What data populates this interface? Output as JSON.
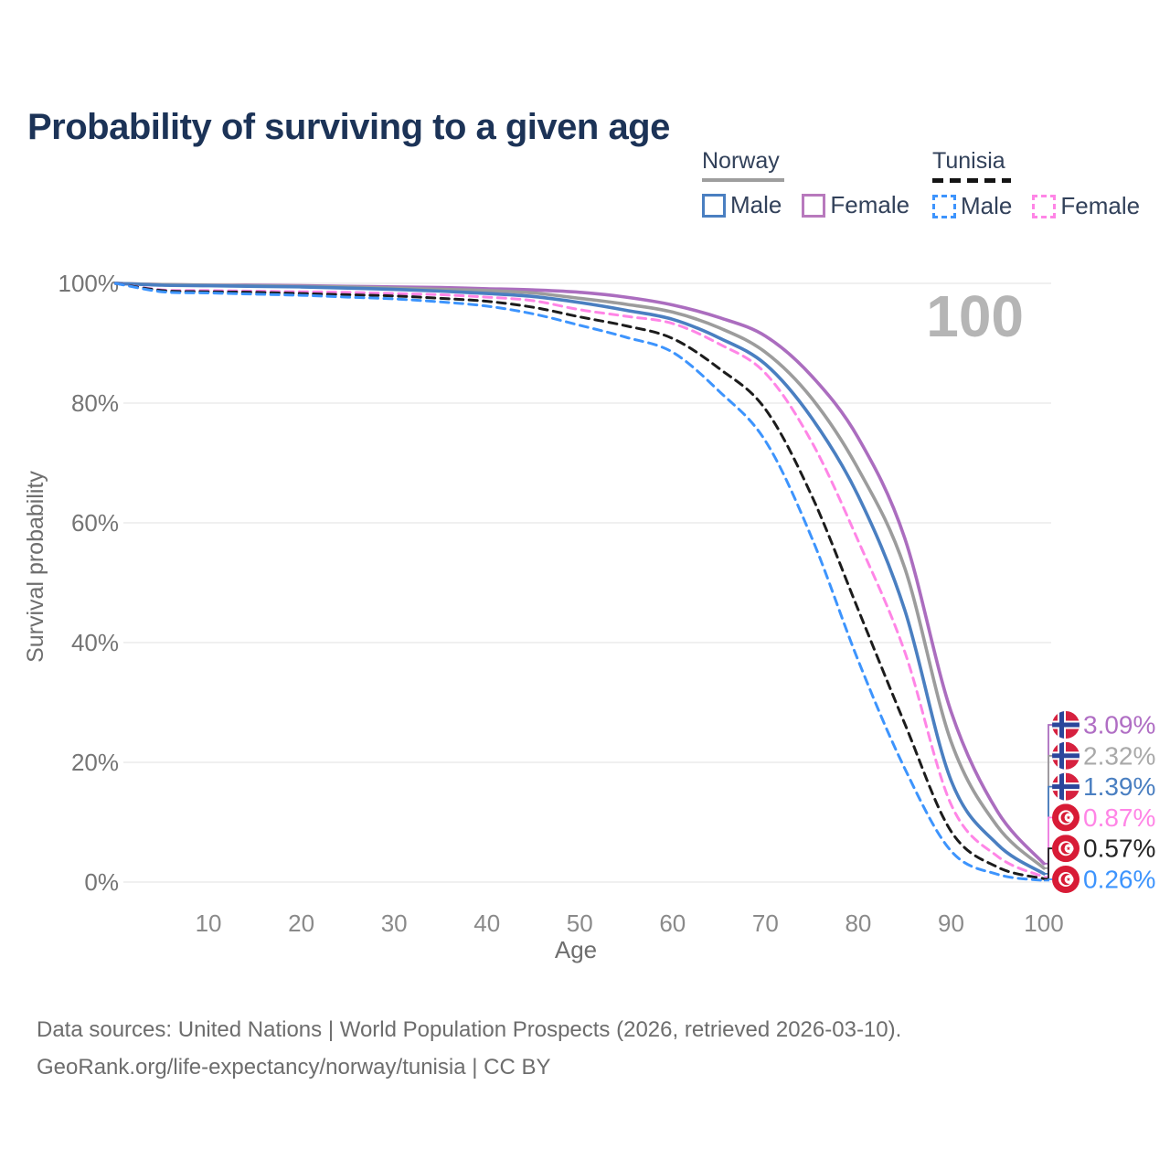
{
  "title": "Probability of surviving to a given age",
  "watermark": "100",
  "legend": {
    "norway": {
      "header": "Norway",
      "male_label": "Male",
      "female_label": "Female"
    },
    "tunisia": {
      "header": "Tunisia",
      "male_label": "Male",
      "female_label": "Female"
    }
  },
  "axes": {
    "x_label": "Age",
    "y_label": "Survival probability",
    "x_ticks": [
      10,
      20,
      30,
      40,
      50,
      60,
      70,
      80,
      90,
      100
    ],
    "y_ticks": [
      "0%",
      "20%",
      "40%",
      "60%",
      "80%",
      "100%"
    ]
  },
  "chart_data": {
    "type": "line",
    "title": "Probability of surviving to a given age",
    "xlabel": "Age",
    "ylabel": "Survival probability",
    "xlim": [
      0,
      100
    ],
    "ylim": [
      0,
      100
    ],
    "grid": "horizontal",
    "legend_position": "top-right",
    "x": [
      0,
      5,
      10,
      15,
      20,
      25,
      30,
      35,
      40,
      45,
      50,
      55,
      60,
      65,
      70,
      75,
      80,
      85,
      90,
      95,
      100
    ],
    "series": [
      {
        "name": "Norway — Female",
        "country": "norway",
        "sex": "female",
        "style": "solid",
        "color": "#ab6dbf",
        "end_label": "3.09%",
        "end_label_color": "#b06ec4",
        "values": [
          100,
          99.8,
          99.7,
          99.7,
          99.6,
          99.5,
          99.4,
          99.3,
          99.1,
          98.9,
          98.5,
          97.7,
          96.4,
          94.3,
          91.2,
          84.5,
          74.2,
          57.5,
          28.5,
          11.8,
          3.09
        ]
      },
      {
        "name": "Norway — Both sexes",
        "country": "norway",
        "sex": "all",
        "style": "solid",
        "color": "#9c9c9c",
        "end_label": "2.32%",
        "end_label_color": "#a9a9a9",
        "values": [
          100,
          99.8,
          99.7,
          99.6,
          99.5,
          99.4,
          99.2,
          99.0,
          98.8,
          98.4,
          97.5,
          96.5,
          95.2,
          92.6,
          88.5,
          80.8,
          69.0,
          52.5,
          23.5,
          9.3,
          2.32
        ]
      },
      {
        "name": "Norway — Male",
        "country": "norway",
        "sex": "male",
        "style": "solid",
        "color": "#4a7fc1",
        "end_label": "1.39%",
        "end_label_color": "#4a7fc1",
        "values": [
          100,
          99.7,
          99.6,
          99.5,
          99.4,
          99.2,
          99.0,
          98.7,
          98.3,
          97.8,
          96.8,
          95.5,
          94.0,
          90.9,
          86.5,
          77.5,
          64.5,
          45.5,
          17.0,
          6.3,
          1.39
        ]
      },
      {
        "name": "Tunisia — Female",
        "country": "tunisia",
        "sex": "female",
        "style": "dashed",
        "color": "#ff85e6",
        "end_label": "0.87%",
        "end_label_color": "#ff85e6",
        "values": [
          100,
          98.9,
          98.8,
          98.7,
          98.6,
          98.5,
          98.3,
          98.1,
          97.7,
          97.1,
          95.6,
          94.5,
          93.3,
          89.9,
          85.0,
          73.5,
          57.0,
          38.5,
          13.0,
          4.3,
          0.87
        ]
      },
      {
        "name": "Tunisia — Both sexes",
        "country": "tunisia",
        "sex": "all",
        "style": "dashed",
        "color": "#1c1c1c",
        "end_label": "0.57%",
        "end_label_color": "#242424",
        "values": [
          100,
          98.8,
          98.6,
          98.5,
          98.3,
          98.1,
          97.9,
          97.5,
          97.0,
          96.0,
          94.4,
          92.9,
          90.8,
          85.8,
          79.0,
          64.5,
          45.5,
          26.5,
          8.5,
          2.5,
          0.57
        ]
      },
      {
        "name": "Tunisia — Male",
        "country": "tunisia",
        "sex": "male",
        "style": "dashed",
        "color": "#3d94fd",
        "end_label": "0.26%",
        "end_label_color": "#3d94fd",
        "values": [
          100,
          98.6,
          98.4,
          98.2,
          98.0,
          97.7,
          97.4,
          96.9,
          96.2,
          94.9,
          93.0,
          91.0,
          88.5,
          82.0,
          73.7,
          57.5,
          37.0,
          19.0,
          5.2,
          1.3,
          0.26
        ]
      }
    ]
  },
  "footer": {
    "line1": "Data sources: United Nations | World Population Prospects (2026, retrieved 2026-03-10).",
    "line2": "GeoRank.org/life-expectancy/norway/tunisia | CC BY"
  }
}
